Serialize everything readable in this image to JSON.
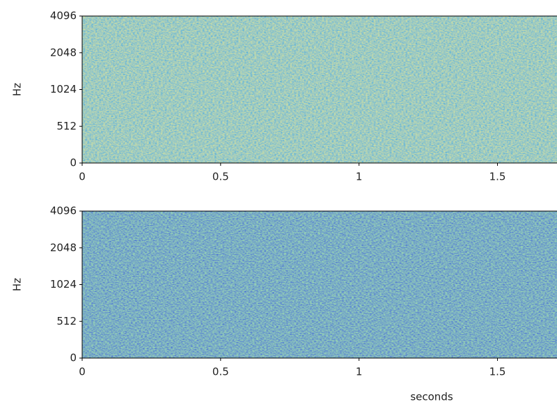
{
  "chart_data": [
    {
      "type": "spectrogram",
      "ylabel": "Hz",
      "colormap": "viridis",
      "xlim": [
        0,
        1.72
      ],
      "xticks": [
        0,
        0.5,
        1,
        1.5
      ],
      "ylim": [
        0,
        4096
      ],
      "yticks": [
        0,
        512,
        1024,
        2048,
        4096
      ],
      "yscale": "symlog",
      "linthresh": 512
    },
    {
      "type": "spectrogram",
      "ylabel": "Hz",
      "xlabel": "seconds",
      "colormap": "viridis",
      "xlim": [
        0,
        1.72
      ],
      "xticks": [
        0,
        0.5,
        1,
        1.5
      ],
      "ylim": [
        0,
        4096
      ],
      "yticks": [
        0,
        512,
        1024,
        2048,
        4096
      ],
      "yscale": "symlog",
      "linthresh": 512
    }
  ]
}
